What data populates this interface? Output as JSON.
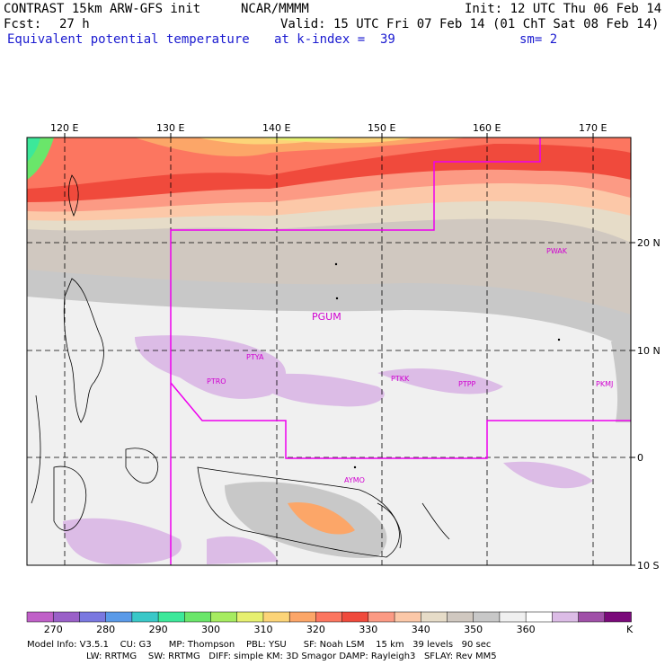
{
  "header": {
    "model": "CONTRAST 15km ARW-GFS init",
    "org": "NCAR/MMMM",
    "init": "Init: 12 UTC Thu 06 Feb 14",
    "fcst_label": "Fcst:",
    "fcst_value": "27 h",
    "valid": "Valid: 15 UTC Fri 07 Feb 14 (01 ChT Sat 08 Feb 14)",
    "field": "Equivalent potential temperature",
    "level": "at k-index =  39",
    "smooth": "sm= 2"
  },
  "map": {
    "lon_labels": [
      "120 E",
      "130 E",
      "140 E",
      "150 E",
      "160 E",
      "170 E"
    ],
    "lat_labels": [
      "20 N",
      "10 N",
      "0",
      "10 S"
    ],
    "stations": [
      "PGUM",
      "PWAK",
      "PTYA",
      "PTRO",
      "PTKK",
      "PTPP",
      "PKMJ",
      "AYMO"
    ],
    "boundary_color": "#ee00ee"
  },
  "colorbar": {
    "labels": [
      "270",
      "280",
      "290",
      "300",
      "310",
      "320",
      "330",
      "340",
      "350",
      "360"
    ],
    "unit": "K",
    "colors": [
      "#c060c8",
      "#9a60c8",
      "#7a78e0",
      "#5a9ae8",
      "#3ac8c8",
      "#3ce89a",
      "#6ae66a",
      "#a6ec60",
      "#e6f070",
      "#fcd478",
      "#fca668",
      "#fc7660",
      "#f04a3c",
      "#fc9a84",
      "#fcc8a8",
      "#e6dcc8",
      "#d0c8c0",
      "#c8c8c8",
      "#f0f0f0",
      "#ffffff",
      "#dcbce6",
      "#a050a8",
      "#7a0a7a"
    ]
  },
  "footer": {
    "line1": "Model Info: V3.5.1    CU: G3      MP: Thompson    PBL: YSU      SF: Noah LSM    15 km   39 levels   90 sec",
    "line2": "LW: RRTMG    SW: RRTMG   DIFF: simple KM: 3D Smagor DAMP: Rayleigh3   SFLAY: Rev MM5"
  }
}
